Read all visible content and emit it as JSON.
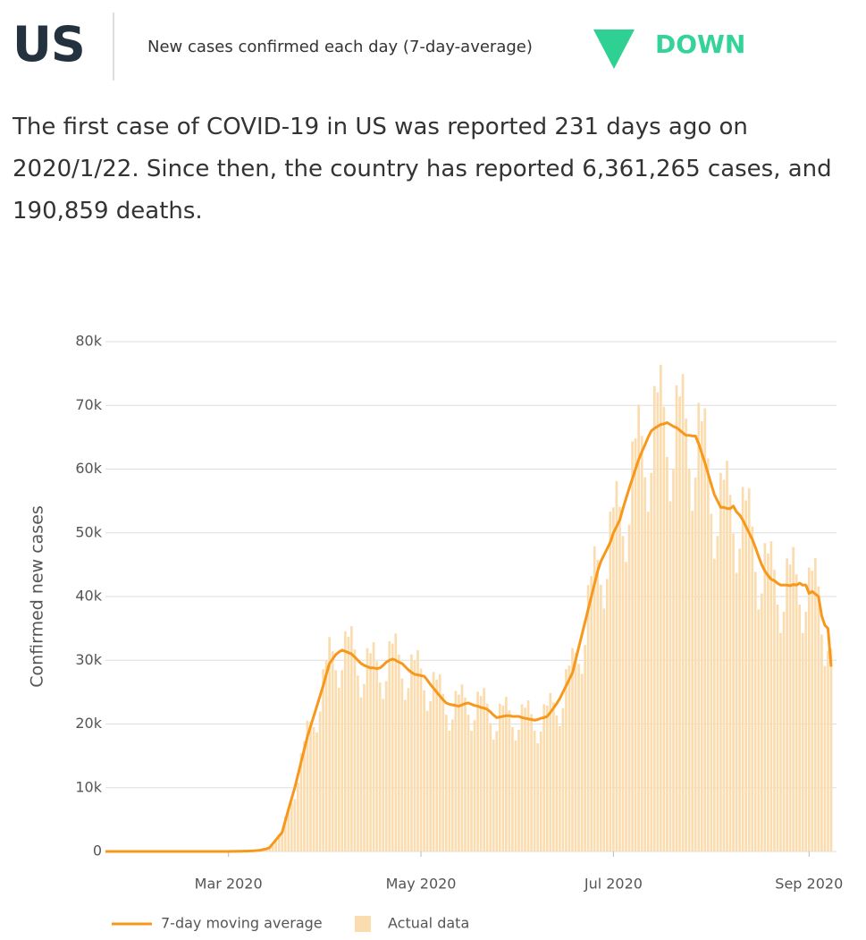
{
  "header": {
    "country": "US",
    "subtitle": "New cases confirmed each day (7-day-average)",
    "trend": "DOWN"
  },
  "description": "The first case of COVID-19 in US was reported 231 days ago on 2020/1/22. Since then, the country has reported 6,361,265 cases, and 190,859 deaths.",
  "chart_data": {
    "type": "bar",
    "ylabel": "Confirmed new cases",
    "ylim": [
      0,
      80000
    ],
    "yticks": [
      0,
      {
        "value": 10000,
        "label": "10k"
      },
      {
        "value": 20000,
        "label": "20k"
      },
      {
        "value": 30000,
        "label": "30k"
      },
      {
        "value": 40000,
        "label": "40k"
      },
      {
        "value": 50000,
        "label": "50k"
      },
      {
        "value": 60000,
        "label": "60k"
      },
      {
        "value": 70000,
        "label": "70k"
      },
      {
        "value": 80000,
        "label": "80k"
      }
    ],
    "grid": true,
    "legend": "bottom",
    "categories": [
      null,
      null,
      null,
      null,
      null,
      null,
      null,
      null,
      null,
      null,
      null,
      null,
      null,
      null,
      null,
      null,
      null,
      null,
      null,
      null,
      null,
      null,
      null,
      null,
      null,
      null,
      null,
      null,
      null,
      null,
      null,
      null,
      null,
      null,
      null,
      null,
      null,
      null,
      null,
      "Mar 2020",
      null,
      null,
      null,
      null,
      null,
      null,
      null,
      null,
      null,
      null,
      null,
      null,
      null,
      null,
      null,
      null,
      null,
      null,
      null,
      null,
      null,
      null,
      null,
      null,
      null,
      null,
      null,
      null,
      null,
      null,
      null,
      null,
      null,
      null,
      null,
      null,
      null,
      null,
      null,
      null,
      null,
      null,
      null,
      null,
      null,
      null,
      null,
      null,
      null,
      null,
      null,
      null,
      null,
      null,
      null,
      null,
      null,
      null,
      null,
      null,
      "May 2020",
      null,
      null,
      null,
      null,
      null,
      null,
      null,
      null,
      null,
      null,
      null,
      null,
      null,
      null,
      null,
      null,
      null,
      null,
      null,
      null,
      null,
      null,
      null,
      null,
      null,
      null,
      null,
      null,
      null,
      null,
      null,
      null,
      null,
      null,
      null,
      null,
      null,
      null,
      null,
      null,
      null,
      null,
      null,
      null,
      null,
      null,
      null,
      null,
      null,
      null,
      null,
      null,
      null,
      null,
      null,
      null,
      null,
      null,
      null,
      null,
      "Jul 2020",
      null,
      null,
      null,
      null,
      null,
      null,
      null,
      null,
      null,
      null,
      null,
      null,
      null,
      null,
      null,
      null,
      null,
      null,
      null,
      null,
      null,
      null,
      null,
      null,
      null,
      null,
      null,
      null,
      null,
      null,
      null,
      null,
      null,
      null,
      null,
      null,
      null,
      null,
      null,
      null,
      null,
      null,
      null,
      null,
      null,
      null,
      null,
      null,
      null,
      null,
      null,
      null,
      null,
      null,
      null,
      null,
      null,
      null,
      null,
      null,
      null,
      "Sep 2020",
      null,
      null,
      null,
      null,
      null,
      null,
      null
    ],
    "series": [
      {
        "name": "7-day moving average",
        "type": "line",
        "color": "#f7981d",
        "values": [
          0,
          0,
          0,
          0,
          0,
          0,
          0,
          0,
          0,
          0,
          0,
          0,
          0,
          0,
          0,
          0,
          0,
          0,
          0,
          0,
          0,
          0,
          0,
          0,
          0,
          0,
          0,
          0,
          0,
          0,
          0,
          0,
          0,
          0,
          0,
          0,
          0,
          0,
          0,
          0,
          10,
          20,
          30,
          40,
          50,
          60,
          80,
          100,
          150,
          200,
          300,
          400,
          600,
          1200,
          1800,
          2400,
          3000,
          4800,
          6600,
          8300,
          10000,
          12000,
          14000,
          16000,
          18000,
          19600,
          21200,
          22800,
          24400,
          26000,
          27800,
          29500,
          30200,
          30900,
          31300,
          31600,
          31400,
          31200,
          31000,
          30500,
          30000,
          29500,
          29200,
          29000,
          28800,
          28800,
          28700,
          28800,
          29200,
          29700,
          30000,
          30200,
          30000,
          29700,
          29500,
          29000,
          28500,
          28100,
          27800,
          27700,
          27600,
          27500,
          26900,
          26200,
          25600,
          25000,
          24400,
          23800,
          23300,
          23100,
          23000,
          22900,
          22800,
          23000,
          23200,
          23300,
          23100,
          22900,
          22800,
          22600,
          22500,
          22300,
          21900,
          21400,
          21000,
          21100,
          21200,
          21300,
          21300,
          21200,
          21200,
          21200,
          21000,
          20900,
          20800,
          20700,
          20600,
          20700,
          20900,
          21000,
          21200,
          21800,
          22500,
          23200,
          24000,
          25000,
          26000,
          27000,
          28000,
          30000,
          32000,
          34000,
          36000,
          38000,
          40000,
          42000,
          44000,
          45500,
          46500,
          47500,
          48500,
          50000,
          51000,
          52000,
          53800,
          55400,
          57000,
          58500,
          60000,
          61500,
          62700,
          63800,
          65000,
          66000,
          66400,
          66700,
          67000,
          67100,
          67300,
          67000,
          66700,
          66500,
          66100,
          65700,
          65300,
          65300,
          65200,
          65200,
          64000,
          62500,
          61000,
          59300,
          57600,
          56000,
          55000,
          54000,
          54000,
          53800,
          53800,
          54200,
          53300,
          52800,
          52000,
          51000,
          50000,
          49000,
          47700,
          46300,
          45000,
          44000,
          43300,
          42700,
          42500,
          42100,
          41800,
          41800,
          41800,
          41700,
          41900,
          41800,
          42100,
          41800,
          41800,
          40500,
          40800,
          40400,
          40000,
          37000,
          35500,
          35000,
          29000
        ]
      },
      {
        "name": "Actual data",
        "type": "bar",
        "color": "#fbdcae",
        "values": [
          0,
          0,
          0,
          0,
          0,
          0,
          0,
          0,
          0,
          0,
          0,
          0,
          0,
          0,
          0,
          0,
          0,
          0,
          0,
          0,
          0,
          0,
          0,
          0,
          0,
          0,
          0,
          0,
          0,
          0,
          0,
          0,
          0,
          0,
          0,
          0,
          0,
          0,
          0,
          0,
          10,
          20,
          30,
          40,
          50,
          60,
          80,
          100,
          150,
          200,
          340,
          420,
          550,
          980,
          1620,
          2640,
          3240,
          5470,
          6860,
          7640,
          8200,
          10800,
          15400,
          17280,
          20520,
          20380,
          19500,
          18700,
          21960,
          28600,
          30020,
          33630,
          31410,
          28430,
          25670,
          28440,
          34540,
          33700,
          35340,
          31720,
          27600,
          24190,
          26280,
          31900,
          31100,
          32830,
          29850,
          26500,
          23940,
          26730,
          33000,
          32620,
          34200,
          30890,
          27140,
          23780,
          25650,
          30910,
          30020,
          31580,
          28700,
          25300,
          22060,
          23580,
          28160,
          27000,
          27820,
          24750,
          21440,
          18940,
          20700,
          25190,
          24620,
          26220,
          24130,
          21440,
          18940,
          20610,
          25080,
          24410,
          25650,
          23190,
          20150,
          17550,
          18900,
          23210,
          22900,
          24280,
          22150,
          19500,
          17380,
          19080,
          23100,
          22570,
          23710,
          21530,
          18950,
          16970,
          18810,
          23100,
          22900,
          24850,
          23400,
          21340,
          19680,
          22500,
          28600,
          29160,
          31920,
          31200,
          29440,
          27880,
          32400,
          41800,
          43200,
          47880,
          45760,
          41860,
          38130,
          42750,
          53350,
          54000,
          58140,
          54080,
          49500,
          45430,
          51300,
          64350,
          64800,
          70110,
          65210,
          58700,
          53300,
          59400,
          73040,
          72040,
          76380,
          69780,
          61920,
          54940,
          60030,
          73150,
          71390,
          74900,
          67910,
          60080,
          53460,
          58680,
          70400,
          67500,
          69540,
          61670,
          52990,
          45920,
          49500,
          59400,
          58320,
          61330,
          55950,
          49860,
          43710,
          47520,
          57200,
          55080,
          57000,
          50960,
          43880,
          37970,
          40500,
          48400,
          46760,
          48680,
          44200,
          38730,
          34280,
          37620,
          45980,
          45040,
          47770,
          43470,
          38730,
          34280,
          37620,
          44550,
          44060,
          46060,
          41600,
          34040,
          29110,
          31500,
          31900
        ]
      }
    ]
  }
}
